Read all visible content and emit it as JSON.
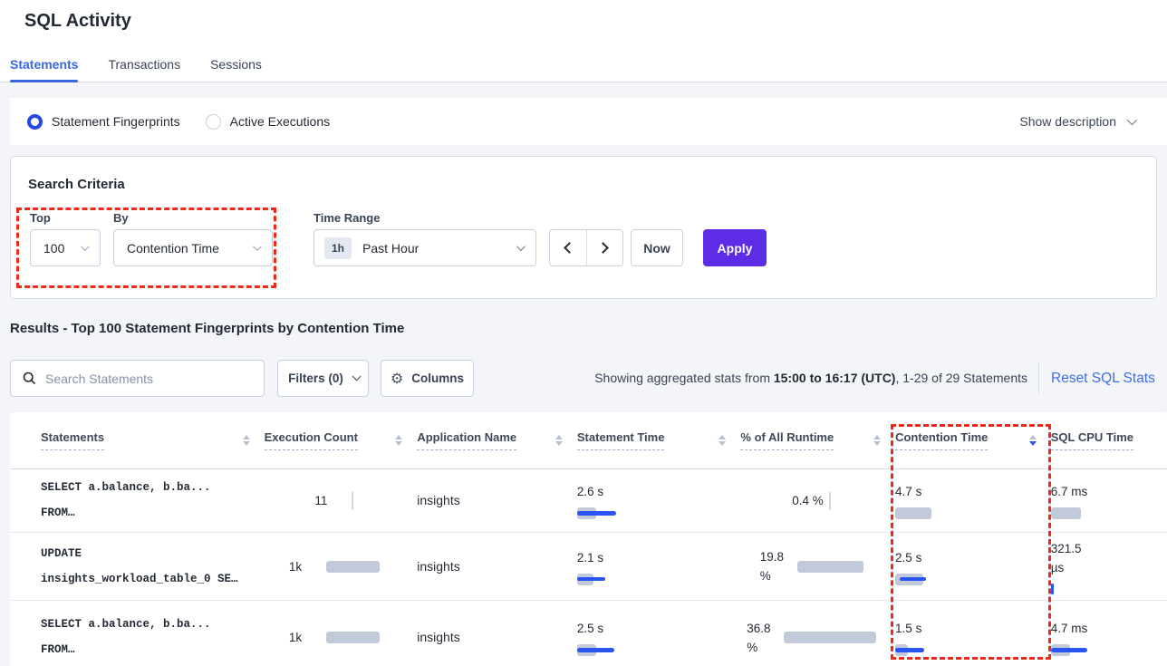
{
  "colors": {
    "accent_blue": "#3a68e0",
    "control_blue": "#2955f5",
    "apply_purple": "#5c2ce6",
    "annotation_red": "#ef2917",
    "bar_gray": "#c2c9d8"
  },
  "header": {
    "title": "SQL Activity",
    "tabs": [
      {
        "label": "Statements",
        "active": true
      },
      {
        "label": "Transactions",
        "active": false
      },
      {
        "label": "Sessions",
        "active": false
      }
    ]
  },
  "view_toggle": {
    "options": [
      {
        "label": "Statement Fingerprints",
        "selected": true
      },
      {
        "label": "Active Executions",
        "selected": false
      }
    ],
    "show_description": "Show description"
  },
  "search_criteria": {
    "title": "Search Criteria",
    "top": {
      "label": "Top",
      "value": "100"
    },
    "by": {
      "label": "By",
      "value": "Contention Time"
    },
    "time_range": {
      "label": "Time Range",
      "badge": "1h",
      "value": "Past Hour"
    },
    "now_label": "Now",
    "apply_label": "Apply"
  },
  "results": {
    "heading": "Results - Top 100 Statement Fingerprints by Contention Time",
    "search_placeholder": "Search Statements",
    "filters_label": "Filters (0)",
    "columns_label": "Columns",
    "showing": {
      "prefix": "Showing aggregated stats from ",
      "bold": "15:00 to 16:17 (UTC)",
      "suffix": ", 1-29 of 29 Statements"
    },
    "reset_label": "Reset SQL Stats"
  },
  "table": {
    "columns": [
      {
        "label": "Statements",
        "sortable": true
      },
      {
        "label": "Execution Count",
        "sortable": true
      },
      {
        "label": "Application Name",
        "sortable": true
      },
      {
        "label": "Statement Time",
        "sortable": true
      },
      {
        "label": "% of All Runtime",
        "sortable": true
      },
      {
        "label": "Contention Time",
        "sortable": true,
        "sorted": "desc"
      },
      {
        "label": "SQL CPU Time",
        "sortable": false
      }
    ],
    "rows": [
      {
        "statement": [
          "SELECT a.balance, b.ba...",
          "FROM…"
        ],
        "execution_count": {
          "lines": [
            "11"
          ],
          "bar": {
            "g": 2
          }
        },
        "application_name": "insights",
        "statement_time": {
          "lines": [
            "2.6 s"
          ],
          "bar": {
            "g": 21,
            "b": 43
          }
        },
        "pct_of_runtime": {
          "lines": [
            "0.4 %"
          ],
          "bar": {
            "g": 2
          }
        },
        "contention_time": {
          "lines": [
            "4.7 s"
          ],
          "bar": {
            "g": 40
          }
        },
        "sql_cpu_time": {
          "lines": [
            "6.7 ms"
          ],
          "bar": {
            "g": 33
          }
        }
      },
      {
        "statement": [
          "UPDATE",
          "insights_workload_table_0 SE…"
        ],
        "execution_count": {
          "lines": [
            "1k"
          ],
          "bar": {
            "g": 59
          }
        },
        "application_name": "insights",
        "statement_time": {
          "lines": [
            "2.1 s"
          ],
          "bar": {
            "g": 18,
            "b": 31
          }
        },
        "pct_of_runtime": {
          "lines": [
            "19.8",
            "%"
          ],
          "bar": {
            "g": 73
          }
        },
        "contention_time": {
          "lines": [
            "2.5 s"
          ],
          "bar": {
            "g": 31,
            "b": 29,
            "bx": 5
          }
        },
        "sql_cpu_time": {
          "lines": [
            "321.5",
            "µs"
          ],
          "bar": {
            "btick": true
          }
        }
      },
      {
        "statement": [
          "SELECT a.balance, b.ba...",
          "FROM…"
        ],
        "execution_count": {
          "lines": [
            "1k"
          ],
          "bar": {
            "g": 59
          }
        },
        "application_name": "insights",
        "statement_time": {
          "lines": [
            "2.5 s"
          ],
          "bar": {
            "g": 21,
            "b": 41
          }
        },
        "pct_of_runtime": {
          "lines": [
            "36.8",
            "%"
          ],
          "bar": {
            "g": 102
          }
        },
        "contention_time": {
          "lines": [
            "1.5 s"
          ],
          "bar": {
            "g": 14,
            "b": 32
          }
        },
        "sql_cpu_time": {
          "lines": [
            "4.7 ms"
          ],
          "bar": {
            "g": 21,
            "b": 40
          }
        }
      }
    ]
  }
}
